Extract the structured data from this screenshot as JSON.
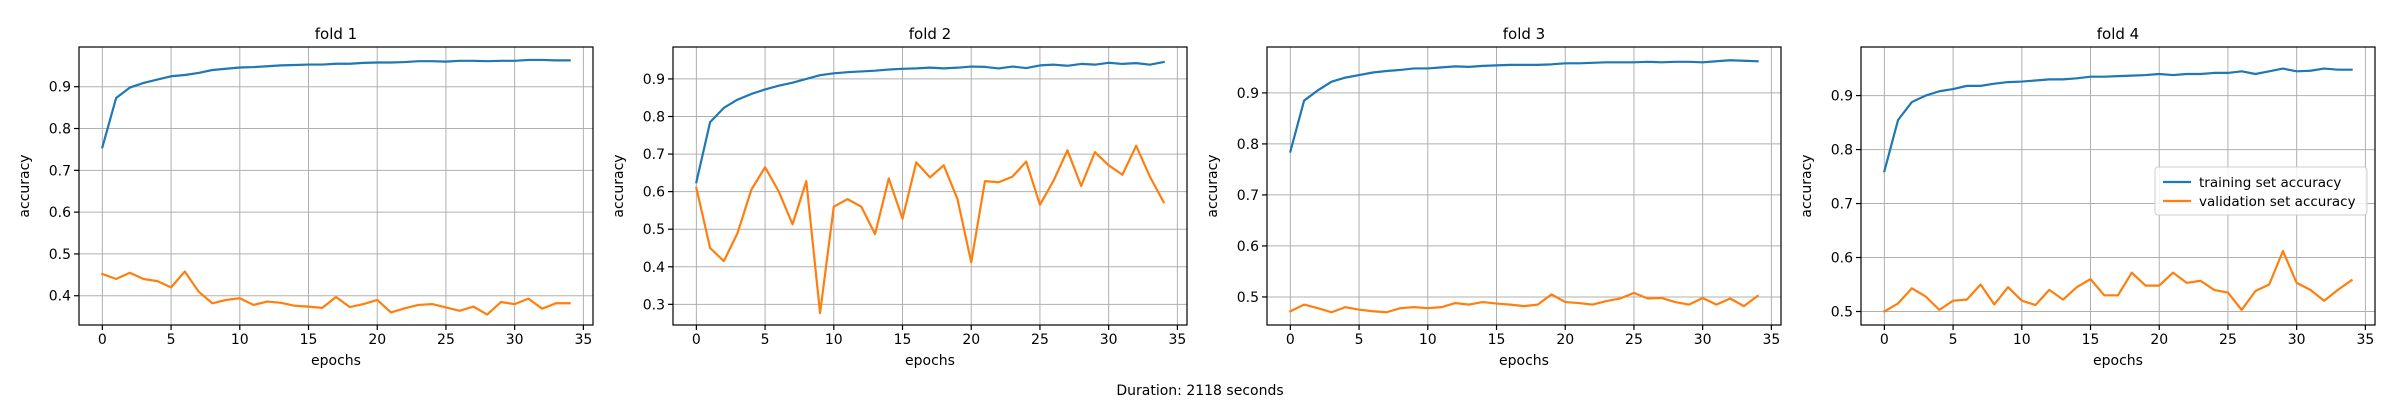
{
  "figure": {
    "caption": "Duration: 2118 seconds"
  },
  "colors": {
    "training": "#1f77b4",
    "validation": "#ff7f0e",
    "grid": "#b0b0b0",
    "axis": "#000000"
  },
  "chart_data": [
    {
      "type": "line",
      "title": "fold 1",
      "xlabel": "epochs",
      "ylabel": "accuracy",
      "xlim": [
        -1.7,
        35.7
      ],
      "ylim": [
        0.33,
        0.995
      ],
      "xticks": [
        0,
        5,
        10,
        15,
        20,
        25,
        30,
        35
      ],
      "yticks": [
        0.4,
        0.5,
        0.6,
        0.7,
        0.8,
        0.9
      ],
      "grid": true,
      "x": [
        0,
        1,
        2,
        3,
        4,
        5,
        6,
        7,
        8,
        9,
        10,
        11,
        12,
        13,
        14,
        15,
        16,
        17,
        18,
        19,
        20,
        21,
        22,
        23,
        24,
        25,
        26,
        27,
        28,
        29,
        30,
        31,
        32,
        33,
        34
      ],
      "series": [
        {
          "name": "training set accuracy",
          "color": "#1f77b4",
          "values": [
            0.755,
            0.873,
            0.898,
            0.909,
            0.917,
            0.925,
            0.928,
            0.933,
            0.94,
            0.943,
            0.946,
            0.947,
            0.949,
            0.951,
            0.952,
            0.953,
            0.953,
            0.955,
            0.955,
            0.957,
            0.958,
            0.958,
            0.959,
            0.961,
            0.961,
            0.96,
            0.962,
            0.962,
            0.961,
            0.962,
            0.962,
            0.964,
            0.964,
            0.963,
            0.963
          ]
        },
        {
          "name": "validation set accuracy",
          "color": "#ff7f0e",
          "values": [
            0.452,
            0.44,
            0.455,
            0.44,
            0.435,
            0.42,
            0.458,
            0.41,
            0.382,
            0.39,
            0.394,
            0.378,
            0.386,
            0.383,
            0.376,
            0.374,
            0.371,
            0.397,
            0.373,
            0.38,
            0.39,
            0.36,
            0.37,
            0.378,
            0.38,
            0.372,
            0.364,
            0.374,
            0.355,
            0.385,
            0.38,
            0.393,
            0.369,
            0.382,
            0.382
          ]
        }
      ]
    },
    {
      "type": "line",
      "title": "fold 2",
      "xlabel": "epochs",
      "ylabel": "accuracy",
      "xlim": [
        -1.7,
        35.7
      ],
      "ylim": [
        0.245,
        0.985
      ],
      "xticks": [
        0,
        5,
        10,
        15,
        20,
        25,
        30,
        35
      ],
      "yticks": [
        0.3,
        0.4,
        0.5,
        0.6,
        0.7,
        0.8,
        0.9
      ],
      "grid": true,
      "x": [
        0,
        1,
        2,
        3,
        4,
        5,
        6,
        7,
        8,
        9,
        10,
        11,
        12,
        13,
        14,
        15,
        16,
        17,
        18,
        19,
        20,
        21,
        22,
        23,
        24,
        25,
        26,
        27,
        28,
        29,
        30,
        31,
        32,
        33,
        34
      ],
      "series": [
        {
          "name": "training set accuracy",
          "color": "#1f77b4",
          "values": [
            0.625,
            0.785,
            0.823,
            0.845,
            0.86,
            0.872,
            0.882,
            0.89,
            0.9,
            0.91,
            0.915,
            0.918,
            0.92,
            0.922,
            0.925,
            0.927,
            0.928,
            0.93,
            0.928,
            0.93,
            0.933,
            0.932,
            0.928,
            0.933,
            0.929,
            0.936,
            0.938,
            0.935,
            0.94,
            0.938,
            0.943,
            0.94,
            0.942,
            0.938,
            0.945
          ]
        },
        {
          "name": "validation set accuracy",
          "color": "#ff7f0e",
          "values": [
            0.61,
            0.45,
            0.415,
            0.49,
            0.605,
            0.665,
            0.6,
            0.513,
            0.628,
            0.277,
            0.56,
            0.58,
            0.56,
            0.487,
            0.635,
            0.528,
            0.678,
            0.638,
            0.67,
            0.58,
            0.412,
            0.628,
            0.625,
            0.64,
            0.68,
            0.565,
            0.63,
            0.71,
            0.615,
            0.705,
            0.67,
            0.645,
            0.722,
            0.64,
            0.572
          ]
        }
      ]
    },
    {
      "type": "line",
      "title": "fold 3",
      "xlabel": "epochs",
      "ylabel": "accuracy",
      "xlim": [
        -1.7,
        35.7
      ],
      "ylim": [
        0.445,
        0.99
      ],
      "xticks": [
        0,
        5,
        10,
        15,
        20,
        25,
        30,
        35
      ],
      "yticks": [
        0.5,
        0.6,
        0.7,
        0.8,
        0.9
      ],
      "grid": true,
      "x": [
        0,
        1,
        2,
        3,
        4,
        5,
        6,
        7,
        8,
        9,
        10,
        11,
        12,
        13,
        14,
        15,
        16,
        17,
        18,
        19,
        20,
        21,
        22,
        23,
        24,
        25,
        26,
        27,
        28,
        29,
        30,
        31,
        32,
        33,
        34
      ],
      "series": [
        {
          "name": "training set accuracy",
          "color": "#1f77b4",
          "values": [
            0.785,
            0.885,
            0.905,
            0.922,
            0.93,
            0.935,
            0.94,
            0.943,
            0.945,
            0.948,
            0.948,
            0.95,
            0.952,
            0.951,
            0.953,
            0.954,
            0.955,
            0.955,
            0.955,
            0.956,
            0.958,
            0.958,
            0.959,
            0.96,
            0.96,
            0.96,
            0.961,
            0.96,
            0.961,
            0.961,
            0.96,
            0.962,
            0.964,
            0.963,
            0.962
          ]
        },
        {
          "name": "validation set accuracy",
          "color": "#ff7f0e",
          "values": [
            0.472,
            0.485,
            0.478,
            0.47,
            0.48,
            0.475,
            0.472,
            0.47,
            0.478,
            0.48,
            0.478,
            0.48,
            0.488,
            0.485,
            0.49,
            0.487,
            0.485,
            0.482,
            0.485,
            0.505,
            0.49,
            0.488,
            0.485,
            0.492,
            0.497,
            0.508,
            0.497,
            0.498,
            0.49,
            0.485,
            0.498,
            0.485,
            0.497,
            0.482,
            0.502
          ]
        }
      ]
    },
    {
      "type": "line",
      "title": "fold 4",
      "xlabel": "epochs",
      "ylabel": "accuracy",
      "xlim": [
        -1.7,
        35.7
      ],
      "ylim": [
        0.475,
        0.99
      ],
      "xticks": [
        0,
        5,
        10,
        15,
        20,
        25,
        30,
        35
      ],
      "yticks": [
        0.5,
        0.6,
        0.7,
        0.8,
        0.9
      ],
      "grid": true,
      "legend": {
        "position": "center-right",
        "entries": [
          "training set accuracy",
          "validation set accuracy"
        ]
      },
      "x": [
        0,
        1,
        2,
        3,
        4,
        5,
        6,
        7,
        8,
        9,
        10,
        11,
        12,
        13,
        14,
        15,
        16,
        17,
        18,
        19,
        20,
        21,
        22,
        23,
        24,
        25,
        26,
        27,
        28,
        29,
        30,
        31,
        32,
        33,
        34
      ],
      "series": [
        {
          "name": "training set accuracy",
          "color": "#1f77b4",
          "values": [
            0.76,
            0.855,
            0.888,
            0.9,
            0.908,
            0.912,
            0.918,
            0.918,
            0.922,
            0.925,
            0.926,
            0.928,
            0.93,
            0.93,
            0.932,
            0.935,
            0.935,
            0.936,
            0.937,
            0.938,
            0.94,
            0.938,
            0.94,
            0.94,
            0.942,
            0.942,
            0.945,
            0.94,
            0.945,
            0.95,
            0.945,
            0.946,
            0.95,
            0.948,
            0.948
          ]
        },
        {
          "name": "validation set accuracy",
          "color": "#ff7f0e",
          "values": [
            0.5,
            0.515,
            0.543,
            0.528,
            0.503,
            0.52,
            0.522,
            0.55,
            0.513,
            0.545,
            0.52,
            0.512,
            0.54,
            0.522,
            0.545,
            0.56,
            0.53,
            0.53,
            0.572,
            0.548,
            0.548,
            0.572,
            0.553,
            0.557,
            0.54,
            0.535,
            0.503,
            0.538,
            0.55,
            0.612,
            0.553,
            0.54,
            0.52,
            0.54,
            0.558
          ]
        }
      ]
    }
  ]
}
